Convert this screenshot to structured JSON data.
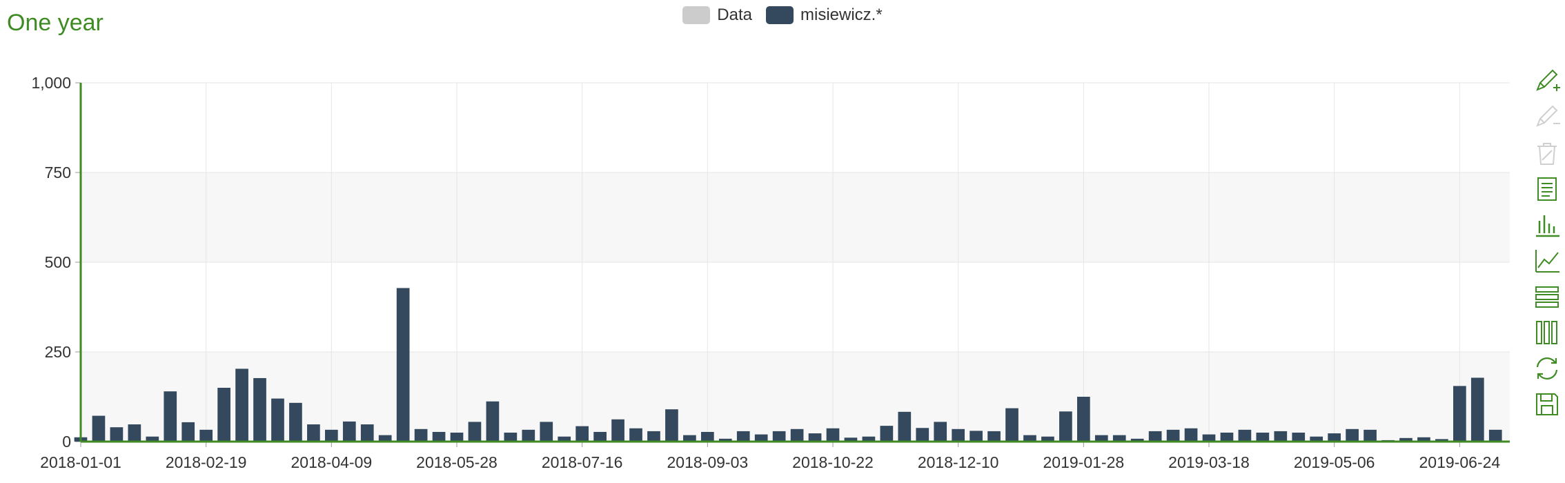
{
  "title": "One year",
  "legend": [
    {
      "label": "Data",
      "color": "#cccccc"
    },
    {
      "label": "misiewicz.*",
      "color": "#34495e"
    }
  ],
  "toolbox": [
    "pencil-add-icon",
    "pencil-remove-icon",
    "trash-icon",
    "data-view-icon",
    "bar-chart-icon",
    "line-chart-icon",
    "stack-icon",
    "tiled-icon",
    "refresh-icon",
    "save-icon"
  ],
  "colors": {
    "accent": "#3d8b22",
    "bar": "#34495e",
    "band": "#f7f7f7",
    "grid": "#e6e6e6"
  },
  "chart_data": {
    "type": "bar",
    "title": "One year",
    "ylim": [
      0,
      1000
    ],
    "yticks": [
      "0",
      "250",
      "500",
      "750",
      "1,000"
    ],
    "xtick_labels": [
      "2018-01-01",
      "2018-02-19",
      "2018-04-09",
      "2018-05-28",
      "2018-07-16",
      "2018-09-03",
      "2018-10-22",
      "2018-12-10",
      "2019-01-28",
      "2019-03-18",
      "2019-05-06",
      "2019-06-24"
    ],
    "categories": [
      "2018-01-01",
      "2018-01-08",
      "2018-01-15",
      "2018-01-22",
      "2018-01-29",
      "2018-02-05",
      "2018-02-12",
      "2018-02-19",
      "2018-02-26",
      "2018-03-05",
      "2018-03-12",
      "2018-03-19",
      "2018-03-26",
      "2018-04-02",
      "2018-04-09",
      "2018-04-16",
      "2018-04-23",
      "2018-04-30",
      "2018-05-07",
      "2018-05-14",
      "2018-05-21",
      "2018-05-28",
      "2018-06-04",
      "2018-06-11",
      "2018-06-18",
      "2018-06-25",
      "2018-07-02",
      "2018-07-09",
      "2018-07-16",
      "2018-07-23",
      "2018-07-30",
      "2018-08-06",
      "2018-08-13",
      "2018-08-20",
      "2018-08-27",
      "2018-09-03",
      "2018-09-10",
      "2018-09-17",
      "2018-09-24",
      "2018-10-01",
      "2018-10-08",
      "2018-10-15",
      "2018-10-22",
      "2018-10-29",
      "2018-11-05",
      "2018-11-12",
      "2018-11-19",
      "2018-11-26",
      "2018-12-03",
      "2018-12-10",
      "2018-12-17",
      "2018-12-24",
      "2018-12-31",
      "2019-01-07",
      "2019-01-14",
      "2019-01-21",
      "2019-01-28",
      "2019-02-04",
      "2019-02-11",
      "2019-02-18",
      "2019-02-25",
      "2019-03-04",
      "2019-03-11",
      "2019-03-18",
      "2019-03-25",
      "2019-04-01",
      "2019-04-08",
      "2019-04-15",
      "2019-04-22",
      "2019-04-29",
      "2019-05-06",
      "2019-05-13",
      "2019-05-20",
      "2019-05-27",
      "2019-06-03",
      "2019-06-10",
      "2019-06-17",
      "2019-06-24",
      "2019-07-01",
      "2019-07-08"
    ],
    "series": [
      {
        "name": "misiewicz.*",
        "values": [
          12,
          72,
          40,
          48,
          14,
          140,
          54,
          33,
          150,
          203,
          177,
          120,
          108,
          48,
          33,
          56,
          48,
          18,
          428,
          35,
          27,
          25,
          55,
          112,
          25,
          33,
          55,
          14,
          43,
          27,
          62,
          37,
          29,
          90,
          18,
          27,
          8,
          29,
          20,
          29,
          35,
          23,
          37,
          11,
          14,
          44,
          83,
          38,
          55,
          35,
          30,
          29,
          93,
          18,
          14,
          84,
          125,
          18,
          18,
          8,
          29,
          33,
          37,
          20,
          25,
          33,
          25,
          29,
          25,
          14,
          23,
          35,
          33,
          4,
          10,
          12,
          7,
          155,
          178,
          33
        ]
      }
    ]
  }
}
